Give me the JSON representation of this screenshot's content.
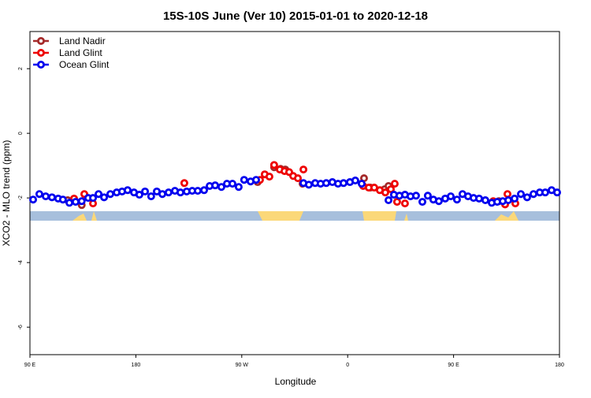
{
  "chart_data": {
    "type": "scatter",
    "title": "15S-10S June (Ver 10)   2015-01-01 to 2020-12-18",
    "x_label": "Longitude",
    "y_label": "XCO2 - MLO trend (ppm)",
    "xlim": [
      90,
      540
    ],
    "xticks": [
      {
        "value": 90,
        "label": "90 E"
      },
      {
        "value": 180,
        "label": "180"
      },
      {
        "value": 270,
        "label": "90 W"
      },
      {
        "value": 360,
        "label": "0"
      },
      {
        "value": 450,
        "label": "90 E"
      },
      {
        "value": 540,
        "label": "180"
      }
    ],
    "ylim": [
      -6.85,
      3.15
    ],
    "yticks": [
      -6,
      -4,
      -2,
      0,
      2
    ],
    "legend": "top-left",
    "series": [
      {
        "name": "Land Nadir",
        "color": "#a52a2a",
        "x": [
          122.1,
          134,
          283.5,
          297.5,
          303,
          307,
          321.7,
          373.9,
          379.3,
          391.4,
          394.7,
          488.4
        ],
        "values": [
          -2.07,
          -2.22,
          -1.51,
          -1.05,
          -1.1,
          -1.12,
          -1.56,
          -1.39,
          -1.68,
          -1.73,
          -1.63,
          -2.1
        ]
      },
      {
        "name": "Land Glint",
        "color": "#ee0000",
        "x": [
          127.5,
          136.2,
          143.6,
          221.2,
          285.5,
          289.5,
          293.5,
          297.5,
          302.3,
          306.3,
          310.3,
          313.7,
          317.7,
          322.4,
          373.2,
          377.9,
          382.6,
          387.3,
          392,
          396.7,
          400,
          402,
          408.7,
          483.7,
          493.8,
          495.8,
          502.5
        ],
        "values": [
          -2.02,
          -1.88,
          -2.17,
          -1.54,
          -1.44,
          -1.27,
          -1.34,
          -0.98,
          -1.12,
          -1.17,
          -1.2,
          -1.32,
          -1.39,
          -1.12,
          -1.63,
          -1.68,
          -1.68,
          -1.76,
          -1.83,
          -1.73,
          -1.56,
          -2.12,
          -2.17,
          -2.1,
          -2.2,
          -1.88,
          -2.17
        ]
      },
      {
        "name": "Ocean Glint",
        "color": "#0000ee",
        "x": [
          92.7,
          98,
          103.4,
          108.7,
          114,
          118,
          123.5,
          128.8,
          134,
          139.5,
          143.6,
          148.3,
          153,
          158.3,
          163.7,
          168.3,
          173,
          178.4,
          183,
          187.8,
          193,
          197.8,
          202.5,
          207.8,
          213.2,
          217.9,
          223.2,
          227.9,
          232.6,
          238,
          242.7,
          247.4,
          252.7,
          257.4,
          262.1,
          267.4,
          272,
          277.5,
          282.2,
          322.4,
          327,
          332.4,
          337,
          341.8,
          347,
          351.8,
          356.5,
          361.9,
          366.5,
          371.9,
          394.7,
          399.3,
          404,
          408.7,
          413.4,
          418.1,
          423.5,
          428.1,
          432.8,
          437.5,
          442.9,
          447.6,
          452.9,
          457.6,
          462.3,
          467,
          471.7,
          477,
          482.4,
          487.1,
          491.8,
          496.5,
          501.8,
          507.2,
          512.5,
          517.9,
          523.2,
          527.9,
          533.3,
          538
        ],
        "values": [
          -2.05,
          -1.88,
          -1.95,
          -1.98,
          -2.02,
          -2.05,
          -2.15,
          -2.12,
          -2.1,
          -2.0,
          -2.0,
          -1.88,
          -1.98,
          -1.88,
          -1.83,
          -1.8,
          -1.76,
          -1.83,
          -1.9,
          -1.8,
          -1.95,
          -1.8,
          -1.88,
          -1.83,
          -1.78,
          -1.83,
          -1.8,
          -1.78,
          -1.78,
          -1.76,
          -1.63,
          -1.61,
          -1.66,
          -1.56,
          -1.56,
          -1.66,
          -1.44,
          -1.49,
          -1.44,
          -1.54,
          -1.59,
          -1.54,
          -1.56,
          -1.54,
          -1.51,
          -1.56,
          -1.54,
          -1.51,
          -1.46,
          -1.56,
          -2.07,
          -1.9,
          -1.93,
          -1.9,
          -1.95,
          -1.93,
          -2.12,
          -1.93,
          -2.05,
          -2.1,
          -2.02,
          -1.95,
          -2.05,
          -1.88,
          -1.95,
          -2.0,
          -2.02,
          -2.07,
          -2.15,
          -2.12,
          -2.1,
          -2.07,
          -2.02,
          -1.88,
          -1.98,
          -1.88,
          -1.83,
          -1.83,
          -1.76,
          -1.83
        ]
      }
    ]
  }
}
